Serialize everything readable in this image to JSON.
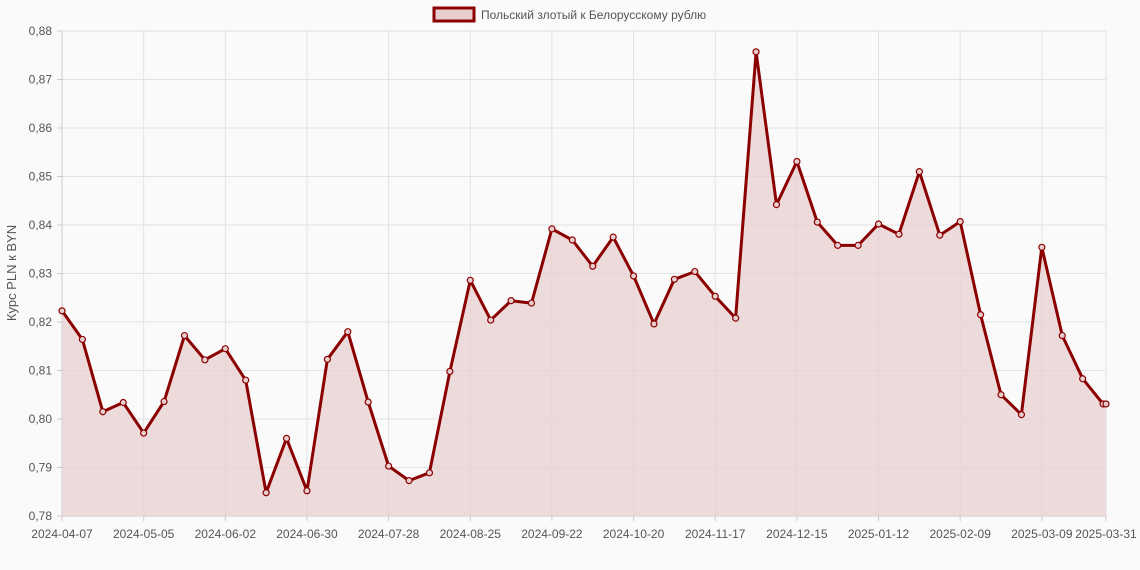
{
  "chart_data": {
    "type": "line",
    "ylabel": "Курс PLN к BYN",
    "xlabel": "",
    "ylim": [
      0.78,
      0.88
    ],
    "y_ticks": [
      "0,88",
      "0,87",
      "0,86",
      "0,85",
      "0,84",
      "0,83",
      "0,82",
      "0,81",
      "0,80",
      "0,79",
      "0,78"
    ],
    "x_tick_labels": [
      "2024-04-07",
      "2024-05-05",
      "2024-06-02",
      "2024-06-30",
      "2024-07-28",
      "2024-08-25",
      "2024-09-22",
      "2024-10-20",
      "2024-11-17",
      "2024-12-15",
      "2025-01-12",
      "2025-02-09",
      "2025-03-09",
      "2025-03-31"
    ],
    "grid": true,
    "legend_position": "top-center",
    "series": [
      {
        "name": "Польский злотый к Белорусскому рублю",
        "line_color": "#8b0000",
        "fill_color": "#e8cfcf",
        "x": [
          "2024-04-07",
          "2024-04-14",
          "2024-04-21",
          "2024-04-28",
          "2024-05-05",
          "2024-05-12",
          "2024-05-19",
          "2024-05-26",
          "2024-06-02",
          "2024-06-09",
          "2024-06-16",
          "2024-06-23",
          "2024-06-30",
          "2024-07-07",
          "2024-07-14",
          "2024-07-21",
          "2024-07-28",
          "2024-08-04",
          "2024-08-11",
          "2024-08-18",
          "2024-08-25",
          "2024-09-01",
          "2024-09-08",
          "2024-09-15",
          "2024-09-22",
          "2024-09-29",
          "2024-10-06",
          "2024-10-13",
          "2024-10-20",
          "2024-10-27",
          "2024-11-03",
          "2024-11-10",
          "2024-11-17",
          "2024-11-24",
          "2024-12-01",
          "2024-12-08",
          "2024-12-15",
          "2024-12-22",
          "2024-12-29",
          "2025-01-05",
          "2025-01-12",
          "2025-01-19",
          "2025-01-26",
          "2025-02-02",
          "2025-02-09",
          "2025-02-16",
          "2025-02-23",
          "2025-03-02",
          "2025-03-09",
          "2025-03-16",
          "2025-03-23",
          "2025-03-30",
          "2025-03-31"
        ],
        "values": [
          0.8223,
          0.8164,
          0.8015,
          0.8034,
          0.7971,
          0.8036,
          0.8172,
          0.8122,
          0.8145,
          0.808,
          0.7848,
          0.796,
          0.7852,
          0.8123,
          0.818,
          0.8035,
          0.7903,
          0.7873,
          0.7889,
          0.8098,
          0.8286,
          0.8204,
          0.8244,
          0.8239,
          0.8392,
          0.8369,
          0.8315,
          0.8375,
          0.8295,
          0.8196,
          0.8288,
          0.8304,
          0.8253,
          0.8208,
          0.8757,
          0.8442,
          0.8531,
          0.8406,
          0.8358,
          0.8358,
          0.8402,
          0.8381,
          0.851,
          0.8379,
          0.8407,
          0.8215,
          0.805,
          0.8009,
          0.8354,
          0.8172,
          0.8083,
          0.8031,
          0.8031
        ]
      }
    ]
  }
}
